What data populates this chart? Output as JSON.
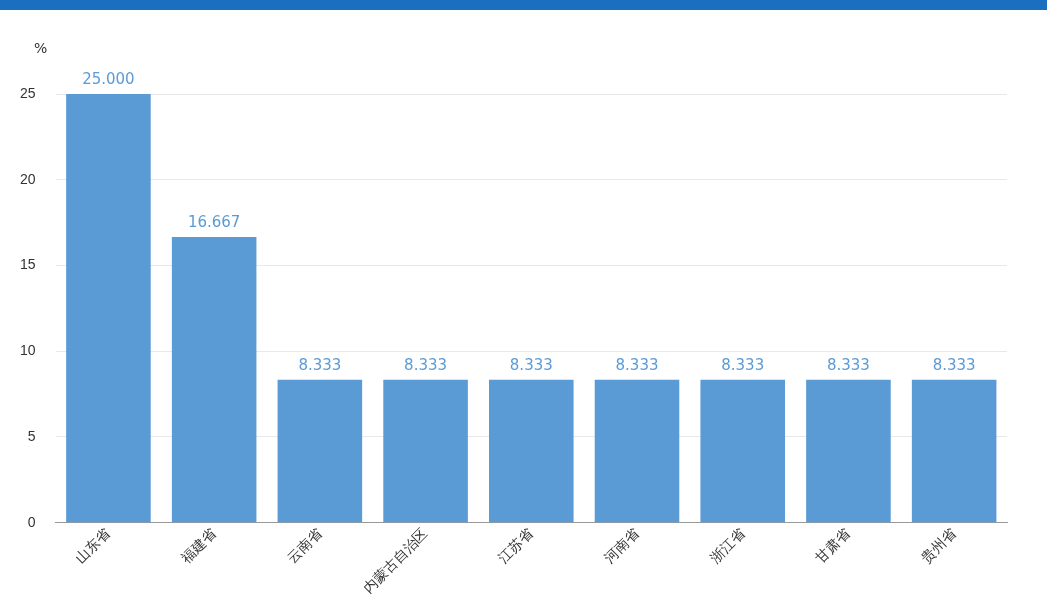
{
  "chart_data": {
    "type": "bar",
    "ylabel": "%",
    "categories": [
      "山东省",
      "福建省",
      "云南省",
      "内蒙古自治区",
      "江苏省",
      "河南省",
      "浙江省",
      "甘肃省",
      "贵州省"
    ],
    "values": [
      25,
      16.667,
      8.333,
      8.333,
      8.333,
      8.333,
      8.333,
      8.333,
      8.333
    ],
    "value_labels": [
      "25.000",
      "16.667",
      "8.333",
      "8.333",
      "8.333",
      "8.333",
      "8.333",
      "8.333",
      "8.333"
    ],
    "color": "#5b9bd5",
    "ylim": [
      0,
      25
    ],
    "yticks": [
      0,
      5,
      10,
      15,
      20,
      25
    ],
    "grid": "y"
  }
}
